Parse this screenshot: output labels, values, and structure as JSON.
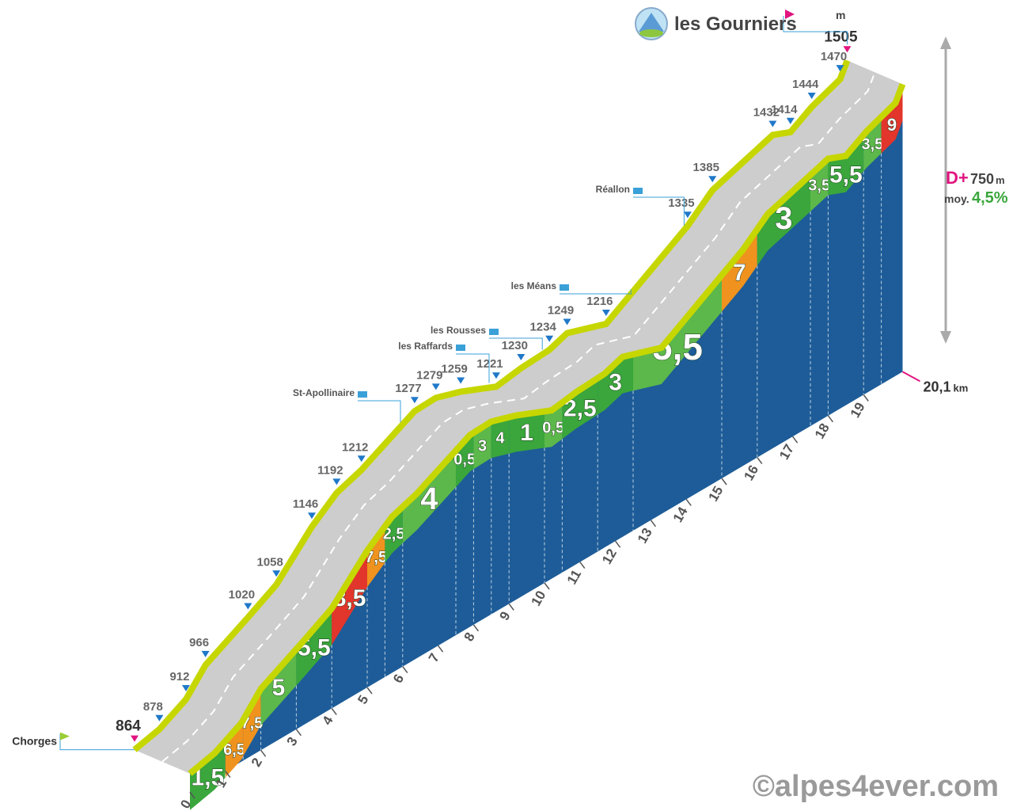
{
  "chart_data": {
    "type": "profile",
    "start": {
      "name": "Chorges"
    },
    "summit": {
      "name": "les Gourniers",
      "unit": "m"
    },
    "altitudes": {
      "km": [
        0,
        0.7,
        1.45,
        2.0,
        3.2,
        4.0,
        5.0,
        5.7,
        6.4,
        7.9,
        8.5,
        9.2,
        10.2,
        10.9,
        11.7,
        12.2,
        13.3,
        15.6,
        16.3,
        18.0,
        18.5,
        19.1,
        19.9,
        20.1
      ],
      "values": [
        864,
        878,
        912,
        966,
        1020,
        1058,
        1146,
        1192,
        1212,
        1277,
        1279,
        1259,
        1221,
        1230,
        1234,
        1249,
        1216,
        1335,
        1385,
        1432,
        1414,
        1444,
        1470,
        1505
      ]
    },
    "segments": {
      "start_km": [
        0,
        1,
        1.5,
        2,
        3,
        4,
        5,
        5.5,
        6,
        7.5,
        8,
        8.5,
        9,
        10,
        10.5,
        11.5,
        12.5,
        15,
        16,
        17.5,
        18,
        19,
        19.5
      ],
      "end_km": [
        1,
        1.5,
        2,
        3,
        4,
        5,
        5.5,
        6,
        7.5,
        8,
        8.5,
        9,
        10,
        10.5,
        11.5,
        12.5,
        15,
        16,
        17.5,
        18,
        19,
        19.5,
        20.1
      ],
      "gradients": [
        1.5,
        6.5,
        7.5,
        5,
        5.5,
        8.5,
        7.5,
        2.5,
        4,
        0.5,
        3,
        4,
        1,
        0.5,
        2.5,
        3,
        5.5,
        7,
        3,
        3.5,
        5.5,
        3.5,
        9
      ],
      "value_labels": [
        "1,5",
        "6,5",
        "7,5",
        "5",
        "5,5",
        "8,5",
        "7,5",
        "2,5",
        "4",
        "0,5",
        "3",
        "4",
        "1",
        "0,5",
        "2,5",
        "3",
        "5,5",
        "7",
        "3",
        "3,5",
        "5,5",
        "3,5",
        "9"
      ],
      "colors": [
        "#3aa63c",
        "#f0921e",
        "#f0921e",
        "#5cb84a",
        "#3aa63c",
        "#e2352b",
        "#f0921e",
        "#3aa63c",
        "#5cb84a",
        "#3aa63c",
        "#5cb84a",
        "#3aa63c",
        "#3aa63c",
        "#5cb84a",
        "#3aa63c",
        "#3aa63c",
        "#5cb84a",
        "#f0921e",
        "#3aa63c",
        "#5cb84a",
        "#3aa63c",
        "#5cb84a",
        "#e2352b"
      ]
    },
    "xticks": [
      0,
      1,
      2,
      3,
      4,
      5,
      6,
      7,
      8,
      9,
      10,
      11,
      12,
      13,
      14,
      15,
      16,
      17,
      18,
      19
    ],
    "total_distance": {
      "value": 20.1,
      "label": "20,1",
      "unit": "km"
    },
    "places": {
      "names": [
        "St-Apollinaire",
        "les Raffards",
        "les Rousses",
        "les Méans",
        "Réallon"
      ],
      "km": [
        7.5,
        10,
        11.5,
        14,
        15.5
      ]
    },
    "elevation_gain": {
      "label": "D+",
      "value": 750,
      "unit": "m"
    },
    "average_gradient": {
      "label": "moy.",
      "value_label": "4,5%"
    },
    "watermark": "©alpes4ever.com"
  }
}
